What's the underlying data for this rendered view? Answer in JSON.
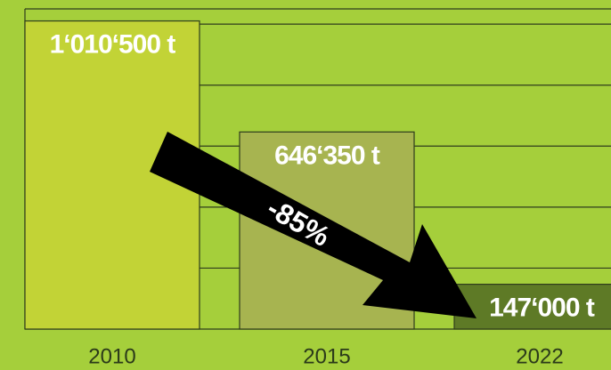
{
  "chart_data": {
    "type": "bar",
    "categories": [
      "2010",
      "2015",
      "2022"
    ],
    "values": [
      1010500,
      646350,
      147000
    ],
    "value_labels": [
      "1‘010‘500 t",
      "646‘350 t",
      "147‘000 t"
    ],
    "colors": [
      "#c2d336",
      "#a7b450",
      "#5e7a26"
    ],
    "ylim": [
      0,
      1050000
    ],
    "yticks": [
      0,
      200000,
      400000,
      600000,
      800000,
      1000000
    ],
    "grid": true,
    "annotation": "-85%"
  }
}
